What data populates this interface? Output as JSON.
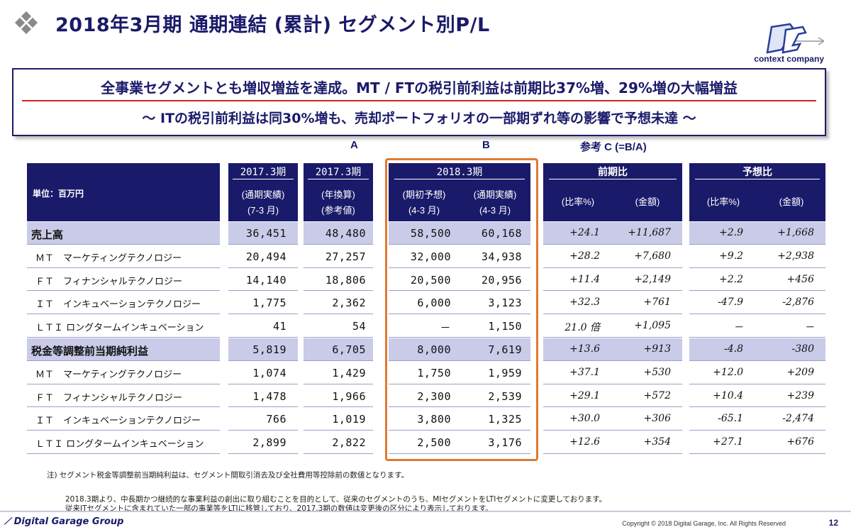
{
  "title": "2018年3月期 通期連結 (累計) セグメント別P/L",
  "logo_caption": "context company",
  "summary": {
    "line1": "全事業セグメントとも増収増益を達成。MT / FTの税引前利益は前期比37%増、29%増の大幅増益",
    "line2": "～ ITの税引前利益は同30%増も、売却ポートフォリオの一部期ずれ等の影響で予想未達 ～"
  },
  "column_letters": {
    "a": "A",
    "b": "B",
    "c": "参考 C (=B/A)"
  },
  "header": {
    "unit": "単位：百万円",
    "col1_top": "2017.3期",
    "col1_sub1": "(通期実績)",
    "col1_sub2": "(7-3 月)",
    "col2_top": "2017.3期",
    "col2_sub1": "(年換算)",
    "col2_sub2": "(参考値)",
    "col3_top": "2018.3期",
    "col3a_sub1": "(期初予想)",
    "col3a_sub2": "(4-3 月)",
    "col3b_sub1": "(通期実績)",
    "col3b_sub2": "(4-3 月)",
    "yoy_top": "前期比",
    "yoy_pct": "(比率%)",
    "yoy_amt": "(金額)",
    "fc_top": "予想比",
    "fc_pct": "(比率%)",
    "fc_amt": "(金額)"
  },
  "rows": [
    {
      "label": "売上高",
      "bold": true,
      "v": [
        "36,451",
        "48,480",
        "58,500",
        "60,168"
      ],
      "yoy": [
        "+24.1",
        "+11,687"
      ],
      "fc": [
        "+2.9",
        "+1,668"
      ]
    },
    {
      "label": "ＭＴ　マーケティングテクノロジー",
      "bold": false,
      "v": [
        "20,494",
        "27,257",
        "32,000",
        "34,938"
      ],
      "yoy": [
        "+28.2",
        "+7,680"
      ],
      "fc": [
        "+9.2",
        "+2,938"
      ]
    },
    {
      "label": "ＦＴ　フィナンシャルテクノロジー",
      "bold": false,
      "v": [
        "14,140",
        "18,806",
        "20,500",
        "20,956"
      ],
      "yoy": [
        "+11.4",
        "+2,149"
      ],
      "fc": [
        "+2.2",
        "+456"
      ]
    },
    {
      "label": "ＩＴ　インキュベーションテクノロジー",
      "bold": false,
      "v": [
        "1,775",
        "2,362",
        "6,000",
        "3,123"
      ],
      "yoy": [
        "+32.3",
        "+761"
      ],
      "fc": [
        "-47.9",
        "-2,876"
      ]
    },
    {
      "label": "ＬＴＩ ロングタームインキュベーション",
      "bold": false,
      "v": [
        "41",
        "54",
        "－",
        "1,150"
      ],
      "yoy": [
        "21.0 倍",
        "+1,095"
      ],
      "fc": [
        "－",
        "－"
      ]
    },
    {
      "label": "税金等調整前当期純利益",
      "bold": true,
      "v": [
        "5,819",
        "6,705",
        "8,000",
        "7,619"
      ],
      "yoy": [
        "+13.6",
        "+913"
      ],
      "fc": [
        "-4.8",
        "-380"
      ]
    },
    {
      "label": "ＭＴ　マーケティングテクノロジー",
      "bold": false,
      "v": [
        "1,074",
        "1,429",
        "1,750",
        "1,959"
      ],
      "yoy": [
        "+37.1",
        "+530"
      ],
      "fc": [
        "+12.0",
        "+209"
      ]
    },
    {
      "label": "ＦＴ　フィナンシャルテクノロジー",
      "bold": false,
      "v": [
        "1,478",
        "1,966",
        "2,300",
        "2,539"
      ],
      "yoy": [
        "+29.1",
        "+572"
      ],
      "fc": [
        "+10.4",
        "+239"
      ]
    },
    {
      "label": "ＩＴ　インキュベーションテクノロジー",
      "bold": false,
      "v": [
        "766",
        "1,019",
        "3,800",
        "1,325"
      ],
      "yoy": [
        "+30.0",
        "+306"
      ],
      "fc": [
        "-65.1",
        "-2,474"
      ]
    },
    {
      "label": "ＬＴＩ ロングタームインキュベーション",
      "bold": false,
      "v": [
        "2,899",
        "2,822",
        "2,500",
        "3,176"
      ],
      "yoy": [
        "+12.6",
        "+354"
      ],
      "fc": [
        "+27.1",
        "+676"
      ]
    }
  ],
  "notes": {
    "note1": "注) セグメント税金等調整前当期純利益は、セグメント間取引消去及び全社費用等控除前の数値となります。",
    "note2": "2018.3期より、中長期かつ継続的な事業利益の創出に取り組むことを目的として、従来のセグメントのうち、MIセグメントをLTIセグメントに変更しております。",
    "note3": "従来ITセグメントに含まれていた一部の事業等をLTIに移管しており、2017.3期の数値は変更後の区分により表示しております。"
  },
  "footer": {
    "company": "Digital Garage Group",
    "copyright": "Copyright © 2018 Digital Garage, Inc. All Rights Reserved",
    "page": "12"
  },
  "colors": {
    "navy": "#1a1a6a",
    "band": "#c9cbe8",
    "orange": "#e07a30",
    "red_rule": "#d22020"
  }
}
